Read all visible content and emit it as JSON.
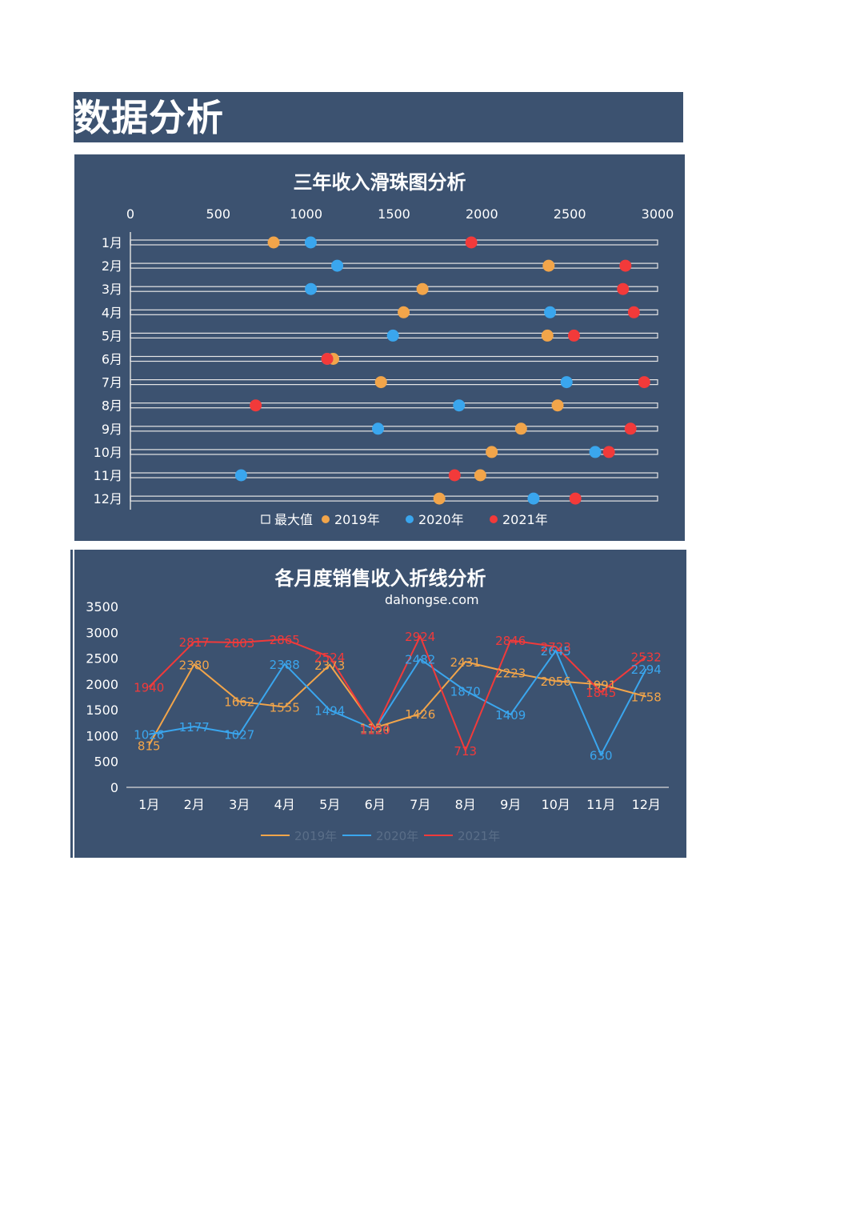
{
  "page": {
    "title": "数据分析"
  },
  "watermark": "dahongse.com",
  "chart_data": [
    {
      "type": "scatter",
      "title": "三年收入滑珠图分析",
      "categories": [
        "1月",
        "2月",
        "3月",
        "4月",
        "5月",
        "6月",
        "7月",
        "8月",
        "9月",
        "10月",
        "11月",
        "12月"
      ],
      "xlim": [
        0,
        3000
      ],
      "xticks": [
        0,
        500,
        1000,
        1500,
        2000,
        2500,
        3000
      ],
      "axis_position": "top",
      "max_value": 3000,
      "series": [
        {
          "name": "最大值",
          "color": "#ffffff",
          "marker": "bar",
          "values": [
            3000,
            3000,
            3000,
            3000,
            3000,
            3000,
            3000,
            3000,
            3000,
            3000,
            3000,
            3000
          ]
        },
        {
          "name": "2019年",
          "color": "#f2a54a",
          "marker": "circle",
          "values": [
            815,
            2380,
            1662,
            1555,
            2373,
            1154,
            1426,
            2431,
            2223,
            2056,
            1991,
            1758
          ]
        },
        {
          "name": "2020年",
          "color": "#3aa6ee",
          "marker": "circle",
          "values": [
            1026,
            1177,
            1027,
            2388,
            1494,
            1120,
            2482,
            1870,
            1409,
            2645,
            630,
            2294
          ]
        },
        {
          "name": "2021年",
          "color": "#f23a3a",
          "marker": "circle",
          "values": [
            1940,
            2817,
            2803,
            2865,
            2524,
            1120,
            2924,
            713,
            2846,
            2723,
            1845,
            2532
          ]
        }
      ],
      "legend": "bottom",
      "grid": false
    },
    {
      "type": "line",
      "title": "各月度销售收入折线分析",
      "categories": [
        "1月",
        "2月",
        "3月",
        "4月",
        "5月",
        "6月",
        "7月",
        "8月",
        "9月",
        "10月",
        "11月",
        "12月"
      ],
      "ylim": [
        0,
        3500
      ],
      "yticks": [
        0,
        500,
        1000,
        1500,
        2000,
        2500,
        3000,
        3500
      ],
      "series": [
        {
          "name": "2019年",
          "color": "#f2a54a",
          "values": [
            815,
            2380,
            1662,
            1555,
            2373,
            1154,
            1426,
            2431,
            2223,
            2056,
            1991,
            1758
          ]
        },
        {
          "name": "2020年",
          "color": "#3aa6ee",
          "values": [
            1026,
            1177,
            1027,
            2388,
            1494,
            1120,
            2482,
            1870,
            1409,
            2645,
            630,
            2294
          ]
        },
        {
          "name": "2021年",
          "color": "#f23a3a",
          "values": [
            1940,
            2817,
            2803,
            2865,
            2524,
            1120,
            2924,
            713,
            2846,
            2723,
            1845,
            2532
          ]
        }
      ],
      "data_labels": true,
      "legend": "bottom",
      "grid": false
    }
  ]
}
